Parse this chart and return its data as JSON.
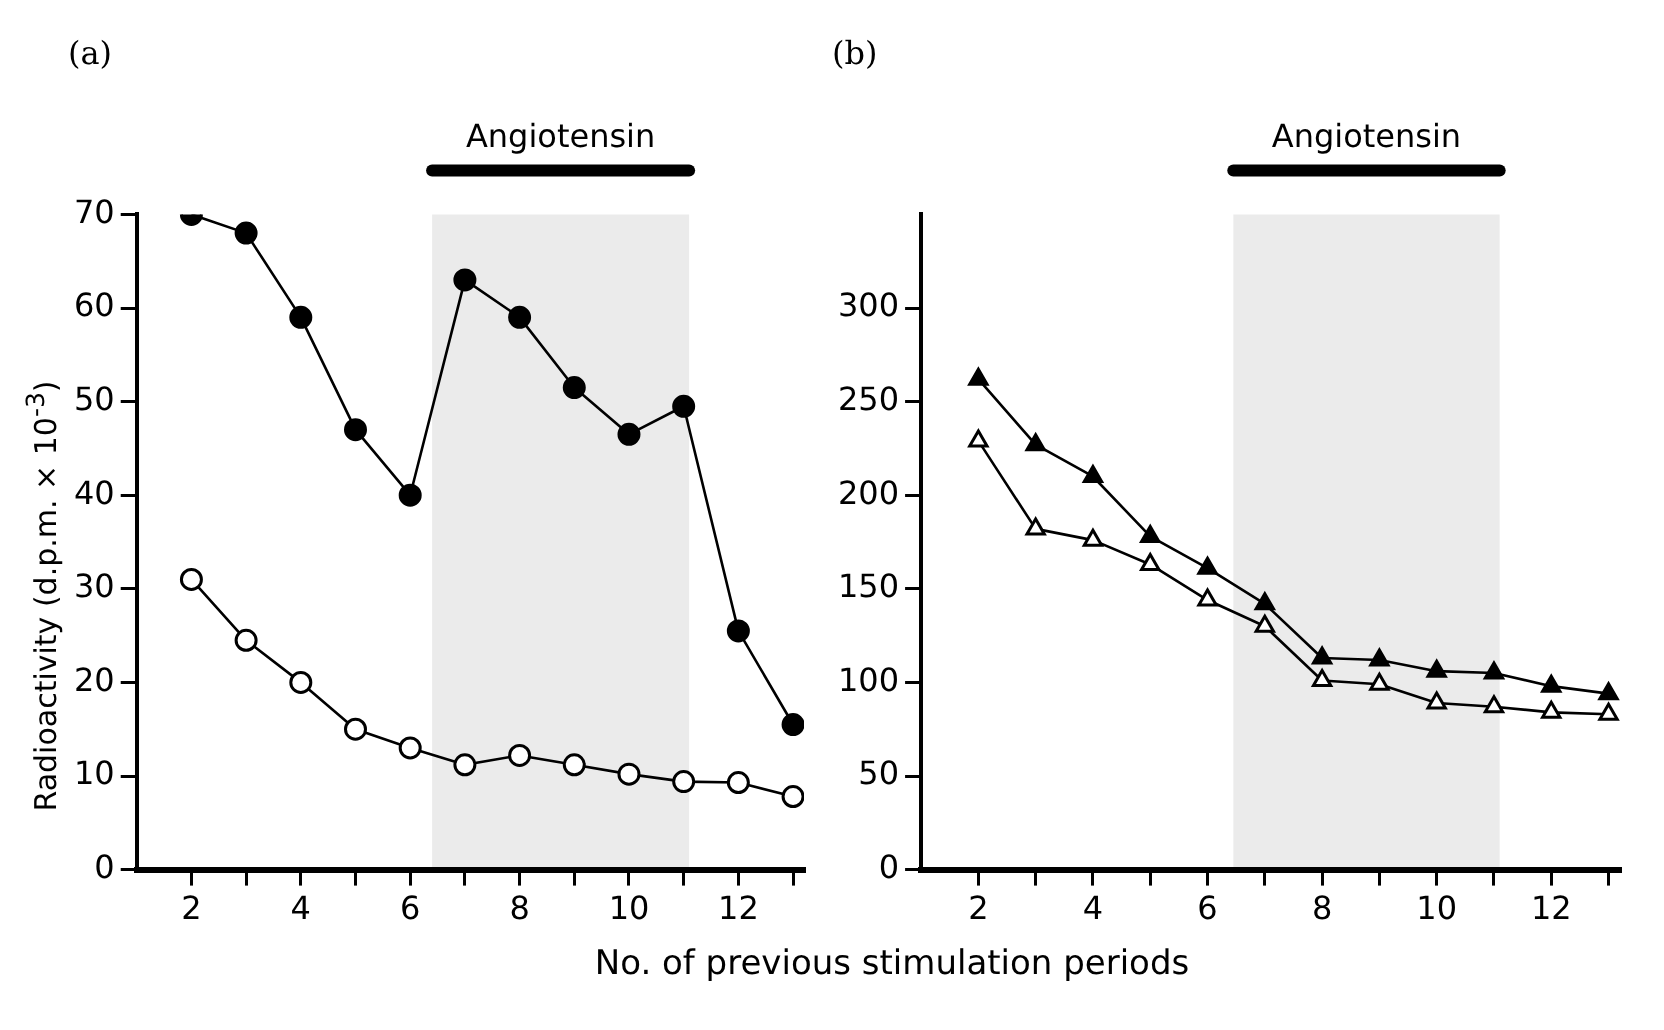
{
  "chart_data": [
    {
      "type": "line",
      "title": "(a)",
      "xlabel": "No. of previous stimulation periods",
      "ylabel": "Radioactivity (d.p.m. × 10$^{-3}$)",
      "x": [
        2,
        3,
        4,
        5,
        6,
        7,
        8,
        9,
        10,
        11,
        12,
        13
      ],
      "series": [
        {
          "color": "#000000",
          "values": [
            70,
            68,
            59,
            47,
            40,
            63,
            59,
            51.5,
            46.5,
            49.5,
            25.5,
            15.5
          ]
        },
        {
          "color": "#000000",
          "values": [
            31,
            24.5,
            20,
            15,
            13,
            11.2,
            12.2,
            11.2,
            10.2,
            9.4,
            9.3,
            7.8
          ]
        }
      ],
      "xlim": [
        1,
        13.2
      ],
      "ylim": [
        0,
        70
      ],
      "xticks": [
        2,
        {
          "value": 3,
          "label": null
        },
        4,
        {
          "value": 5,
          "label": null
        },
        6,
        {
          "value": 7,
          "label": null
        },
        8,
        {
          "value": 9,
          "label": null
        },
        10,
        {
          "value": 11,
          "label": null
        },
        12,
        {
          "value": 13,
          "label": null
        }
      ],
      "yticks": [
        0,
        10,
        20,
        30,
        40,
        50,
        60,
        70
      ],
      "bands": [
        {
          "axis": "x",
          "from": 6.4,
          "to": 11.1,
          "label": "Angiotensin",
          "color": "#000000"
        }
      ],
      "marker": "circle",
      "grid": false,
      "legend": false
    },
    {
      "type": "line",
      "title": "(b)",
      "x": [
        2,
        3,
        4,
        5,
        6,
        7,
        8,
        9,
        10,
        11,
        12,
        13
      ],
      "series": [
        {
          "color": "#000000",
          "values": [
            262,
            227,
            210,
            178,
            161,
            142,
            113,
            112,
            106,
            105,
            98,
            94
          ]
        },
        {
          "color": "#000000",
          "values": [
            229,
            182,
            176,
            163,
            144,
            130,
            101,
            99,
            89,
            87,
            84,
            83
          ]
        }
      ],
      "xlim": [
        1,
        13.2
      ],
      "ylim": [
        0,
        350
      ],
      "xticks": [
        2,
        {
          "value": 3,
          "label": null
        },
        4,
        {
          "value": 5,
          "label": null
        },
        6,
        {
          "value": 7,
          "label": null
        },
        8,
        {
          "value": 9,
          "label": null
        },
        10,
        {
          "value": 11,
          "label": null
        },
        12,
        {
          "value": 13,
          "label": null
        }
      ],
      "yticks": [
        0,
        50,
        100,
        150,
        200,
        250,
        300
      ],
      "bands": [
        {
          "axis": "x",
          "from": 6.45,
          "to": 11.1,
          "label": "Angiotensin",
          "color": "#000000"
        }
      ],
      "marker": "triangle",
      "grid": false,
      "legend": false
    }
  ]
}
